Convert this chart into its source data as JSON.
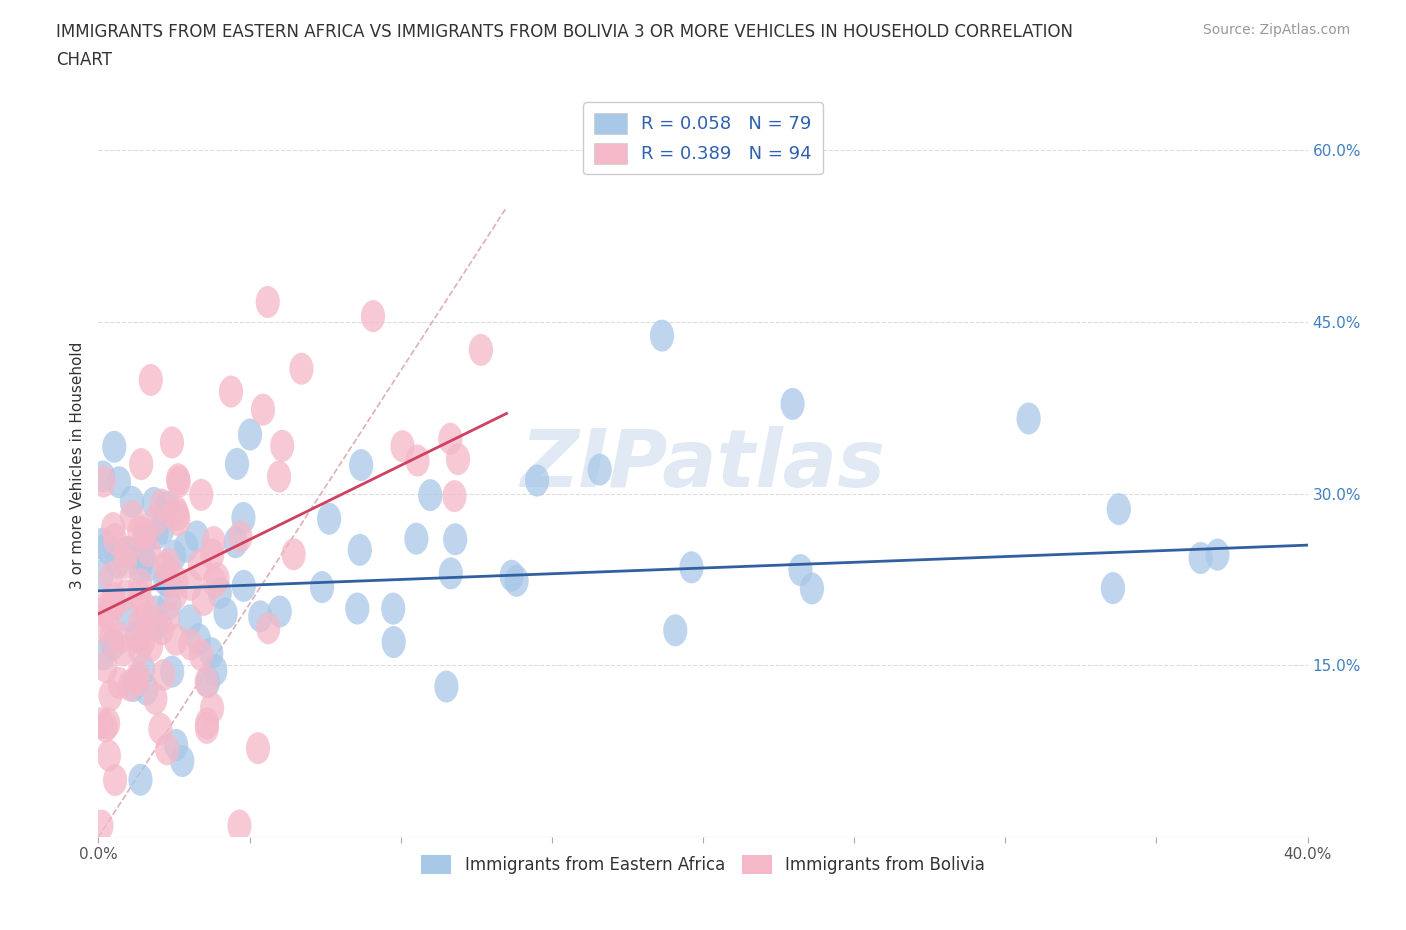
{
  "title_line1": "IMMIGRANTS FROM EASTERN AFRICA VS IMMIGRANTS FROM BOLIVIA 3 OR MORE VEHICLES IN HOUSEHOLD CORRELATION",
  "title_line2": "CHART",
  "source": "Source: ZipAtlas.com",
  "ylabel_label": "3 or more Vehicles in Household",
  "xlim": [
    0.0,
    0.4
  ],
  "ylim": [
    0.0,
    0.65
  ],
  "xtick_vals": [
    0.0,
    0.05,
    0.1,
    0.15,
    0.2,
    0.25,
    0.3,
    0.35,
    0.4
  ],
  "xticklabels_sparse": {
    "0": "0.0%",
    "8": "40.0%"
  },
  "ytick_vals": [
    0.15,
    0.3,
    0.45,
    0.6
  ],
  "yticklabels_right": [
    "15.0%",
    "30.0%",
    "45.0%",
    "60.0%"
  ],
  "watermark": "ZIPatlas",
  "legend_r1": "R = 0.058   N = 79",
  "legend_r2": "R = 0.389   N = 94",
  "series1_label": "Immigrants from Eastern Africa",
  "series2_label": "Immigrants from Bolivia",
  "color1": "#a8c8e8",
  "color2": "#f4b8c8",
  "trendline1_color": "#3060a0",
  "trendline2_color": "#d04060",
  "refline_color": "#d8a8b0",
  "background_color": "#ffffff",
  "grid_color": "#dddddd",
  "trendline1": [
    0.0,
    0.4,
    0.215,
    0.255
  ],
  "trendline2": [
    0.0,
    0.135,
    0.195,
    0.37
  ],
  "refline": [
    0.0,
    0.135,
    0.0,
    0.55
  ]
}
